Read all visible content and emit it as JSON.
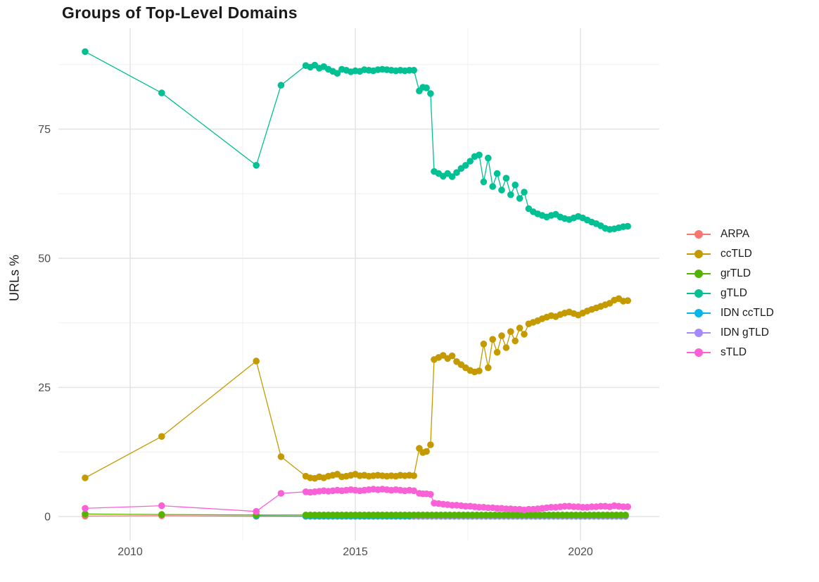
{
  "chart": {
    "title": "Groups of Top-Level Domains",
    "ylabel": "URLs %"
  },
  "chart_data": {
    "type": "line",
    "title": "Groups of Top-Level Domains",
    "xlabel": "",
    "ylabel": "URLs %",
    "x_ticks": [
      2010,
      2015,
      2020
    ],
    "x_minor_ticks": [
      2012.5,
      2017.5
    ],
    "y_ticks": [
      0,
      25,
      50,
      75
    ],
    "y_minor_ticks": [
      12.5,
      37.5,
      62.5,
      87.5
    ],
    "xlim": [
      2008.4,
      2021.75
    ],
    "ylim": [
      -4.5,
      94.7
    ],
    "grid": true,
    "legend_position": "right",
    "background": "#FFFFFF",
    "grid_color_major": "#E4E4E4",
    "grid_color_minor": "#F0F0F0",
    "tick_color": "#4D4D4D",
    "series": [
      {
        "name": "ARPA",
        "color": "#F8766D",
        "segments": [
          {
            "points": [
              [
                2009.0,
                0.1
              ],
              [
                2010.7,
                0.15
              ],
              [
                2012.8,
                0.05
              ]
            ]
          },
          {
            "x0": 2013.9,
            "x1": 2021.05,
            "dx": 0.1,
            "y": 0.05
          }
        ]
      },
      {
        "name": "ccTLD",
        "color": "#C49A00",
        "segments": [
          {
            "points": [
              [
                2009.0,
                7.5
              ],
              [
                2010.7,
                15.5
              ],
              [
                2012.8,
                30.1
              ],
              [
                2013.35,
                11.6
              ]
            ]
          },
          {
            "x0": 2013.9,
            "dx": 0.1,
            "values": [
              7.8,
              7.5,
              7.4,
              7.7,
              7.5,
              7.8,
              8.0,
              8.2,
              7.7,
              7.8,
              8.0,
              8.2,
              7.9,
              8.0,
              7.8,
              7.9,
              8.0,
              7.9,
              7.8,
              7.9,
              7.8,
              8.0,
              7.9,
              8.0,
              7.9
            ]
          },
          {
            "points": [
              [
                2016.42,
                13.2
              ],
              [
                2016.5,
                12.4
              ],
              [
                2016.58,
                12.6
              ],
              [
                2016.67,
                13.9
              ]
            ]
          },
          {
            "x0": 2016.75,
            "dx": 0.1,
            "values": [
              30.4,
              30.8,
              31.2,
              30.6,
              31.1,
              30.0,
              29.4,
              28.8,
              28.3,
              28.0,
              28.2,
              33.4,
              28.8,
              34.3,
              31.8,
              35.0,
              32.7,
              35.8,
              34.0,
              36.5,
              35.3,
              37.3,
              37.6,
              37.9,
              38.3,
              38.6,
              38.9,
              38.7,
              39.1,
              39.4,
              39.6,
              39.3,
              39.0,
              39.4,
              39.8,
              40.1,
              40.4,
              40.7,
              41.0,
              41.3,
              41.9,
              42.2,
              41.7,
              41.8
            ]
          }
        ]
      },
      {
        "name": "grTLD",
        "color": "#53B400",
        "segments": [
          {
            "points": [
              [
                2009.0,
                0.5
              ],
              [
                2010.7,
                0.4
              ],
              [
                2012.8,
                0.3
              ]
            ]
          },
          {
            "x0": 2013.9,
            "x1": 2021.05,
            "dx": 0.1,
            "y": 0.3
          }
        ]
      },
      {
        "name": "gTLD",
        "color": "#00C094",
        "segments": [
          {
            "points": [
              [
                2009.0,
                90.0
              ],
              [
                2010.7,
                82.0
              ],
              [
                2012.8,
                68.0
              ],
              [
                2013.35,
                83.5
              ]
            ]
          },
          {
            "x0": 2013.9,
            "dx": 0.1,
            "values": [
              87.3,
              87.0,
              87.4,
              86.8,
              87.1,
              86.6,
              86.2,
              85.8,
              86.6,
              86.4,
              86.1,
              86.3,
              86.2,
              86.5,
              86.4,
              86.3,
              86.5,
              86.6,
              86.5,
              86.4,
              86.3,
              86.4,
              86.3,
              86.4,
              86.4
            ]
          },
          {
            "points": [
              [
                2016.42,
                82.4
              ],
              [
                2016.5,
                83.1
              ],
              [
                2016.58,
                83.0
              ],
              [
                2016.67,
                81.9
              ]
            ]
          },
          {
            "x0": 2016.75,
            "dx": 0.1,
            "values": [
              66.8,
              66.4,
              65.9,
              66.4,
              65.8,
              66.6,
              67.4,
              68.0,
              68.8,
              69.7,
              70.0,
              64.8,
              69.4,
              63.9,
              66.4,
              63.2,
              65.5,
              62.3,
              64.2,
              61.6,
              62.8,
              59.6,
              59.0,
              58.6,
              58.3,
              58.0,
              58.3,
              58.5,
              58.0,
              57.7,
              57.5,
              57.8,
              58.1,
              57.8,
              57.4,
              57.0,
              56.7,
              56.3,
              55.8,
              55.6,
              55.7,
              55.9,
              56.1,
              56.2
            ]
          }
        ]
      },
      {
        "name": "IDN ccTLD",
        "color": "#00B6EB",
        "segments": [
          {
            "points": [
              [
                2012.8,
                0.1
              ]
            ]
          },
          {
            "x0": 2013.9,
            "x1": 2021.05,
            "dx": 0.1,
            "y": 0.05
          }
        ]
      },
      {
        "name": "IDN gTLD",
        "color": "#A58AFF",
        "segments": [
          {
            "x0": 2016.3,
            "x1": 2021.05,
            "dx": 0.1,
            "y": 0.08
          }
        ]
      },
      {
        "name": "sTLD",
        "color": "#FB61D7",
        "segments": [
          {
            "points": [
              [
                2009.0,
                1.6
              ],
              [
                2010.7,
                2.1
              ],
              [
                2012.8,
                1.0
              ],
              [
                2013.35,
                4.5
              ]
            ]
          },
          {
            "x0": 2013.9,
            "dx": 0.1,
            "values": [
              4.8,
              4.7,
              4.8,
              4.9,
              5.0,
              4.9,
              5.0,
              5.1,
              5.0,
              5.1,
              5.2,
              5.1,
              5.0,
              5.1,
              5.2,
              5.3,
              5.2,
              5.3,
              5.2,
              5.1,
              5.2,
              5.1,
              5.0,
              5.1,
              5.0
            ]
          },
          {
            "points": [
              [
                2016.42,
                4.5
              ],
              [
                2016.5,
                4.4
              ],
              [
                2016.58,
                4.4
              ],
              [
                2016.67,
                4.3
              ]
            ]
          },
          {
            "x0": 2016.75,
            "dx": 0.1,
            "values": [
              2.6,
              2.5,
              2.4,
              2.3,
              2.2,
              2.2,
              2.1,
              2.0,
              2.0,
              1.9,
              1.8,
              1.8,
              1.7,
              1.7,
              1.6,
              1.6,
              1.5,
              1.5,
              1.4,
              1.4,
              1.3,
              1.4,
              1.4,
              1.5,
              1.6,
              1.7,
              1.8,
              1.8,
              1.9,
              2.0,
              2.0,
              1.9,
              1.9,
              1.8,
              1.8,
              1.9,
              1.9,
              2.0,
              2.0,
              1.9,
              2.1,
              2.0,
              1.9,
              1.9
            ]
          }
        ]
      }
    ]
  }
}
